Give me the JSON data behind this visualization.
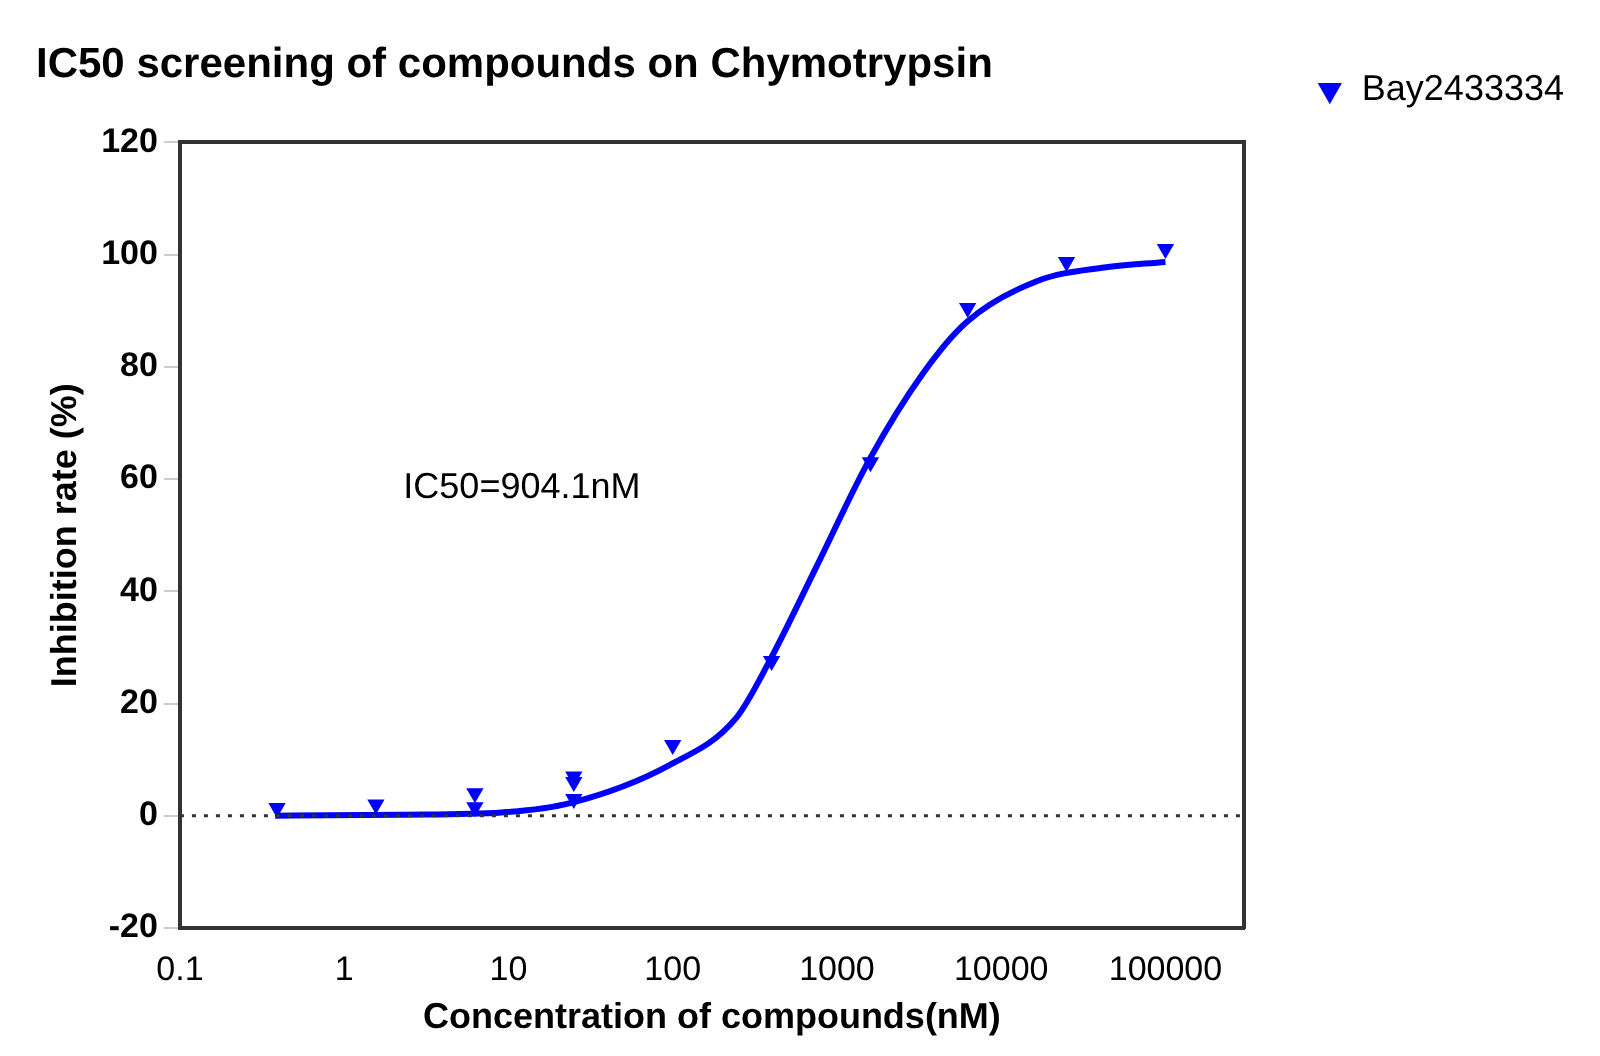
{
  "chart_data": {
    "type": "scatter",
    "title": "IC50 screening of compounds on Chymotrypsin",
    "xlabel": "Concentration of compounds(nM)",
    "ylabel": "Inhibition rate (%)",
    "log": "x",
    "xlim": [
      0.1,
      300000
    ],
    "xticks": [
      0.1,
      1,
      10,
      100,
      1000,
      10000,
      100000
    ],
    "ylim": [
      -20,
      120
    ],
    "yticks": [
      -20,
      0,
      20,
      40,
      60,
      80,
      100,
      120
    ],
    "grid": false,
    "legend": "top right",
    "marker": "triangle",
    "series": [
      {
        "name": "Bay2433334",
        "color": "#0000ff",
        "x": [
          0.39,
          1.56,
          6.25,
          6.25,
          25,
          25,
          25,
          100,
          400,
          1600,
          6250,
          25000,
          100000
        ],
        "values": [
          1.4,
          2,
          4,
          1.5,
          7,
          6,
          3,
          12.6,
          27.6,
          63,
          90.5,
          98.7,
          101
        ]
      },
      {
        "type": "line",
        "color": "#0000ff",
        "marker": "none",
        "x": [
          0.38,
          2.2,
          9.1,
          24,
          95,
          243,
          389,
          751,
          1585,
          3370,
          6170,
          16600,
          42500,
          100000
        ],
        "values": [
          0,
          0.2,
          0.6,
          2.3,
          9,
          17.4,
          27.6,
          44.4,
          63.6,
          79,
          88,
          95.3,
          97.7,
          98.7
        ]
      }
    ],
    "ref_lines": [
      {
        "axis": "y",
        "value": 0,
        "line_style": "dotted",
        "color": "#333333"
      }
    ],
    "annotations": [
      "IC50=904.1nM"
    ]
  }
}
